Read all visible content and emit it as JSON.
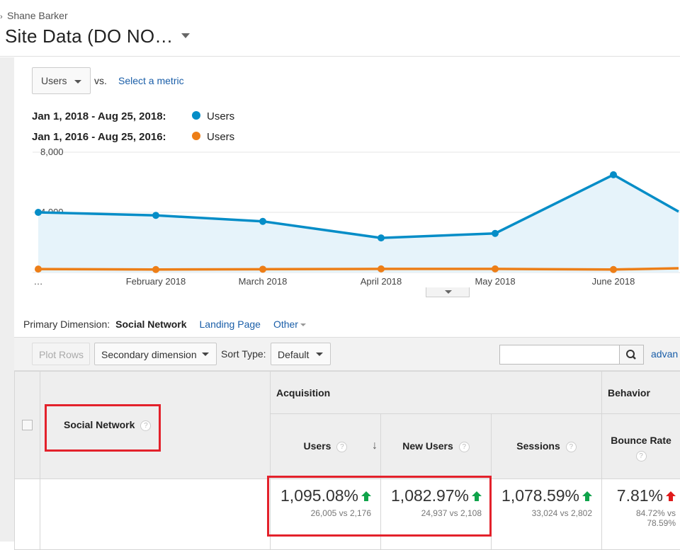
{
  "header": {
    "account": "Shane Barker",
    "view_name": "Site Data (DO NO…"
  },
  "controls": {
    "metric": "Users",
    "vs": "vs.",
    "select_metric": "Select a metric"
  },
  "legend": [
    {
      "range": "Jan 1, 2018 - Aug 25, 2018:",
      "metric": "Users",
      "color": "#058dc7"
    },
    {
      "range": "Jan 1, 2016 - Aug 25, 2016:",
      "metric": "Users",
      "color": "#ed7e17"
    }
  ],
  "chart_data": {
    "type": "line",
    "y_ticks": [
      "8,000",
      "4,000"
    ],
    "ylim": [
      0,
      8000
    ],
    "x_ticks": [
      "…",
      "February 2018",
      "March 2018",
      "April 2018",
      "May 2018",
      "June 2018"
    ],
    "grid": true,
    "series": [
      {
        "name": "Users",
        "period": "Jan 1, 2018 - Aug 25, 2018",
        "color": "#058dc7",
        "values": [
          4000,
          3800,
          3400,
          2300,
          2600,
          6500,
          4050
        ]
      },
      {
        "name": "Users",
        "period": "Jan 1, 2016 - Aug 25, 2016",
        "color": "#ed7e17",
        "values": [
          230,
          200,
          220,
          240,
          240,
          200,
          280
        ]
      }
    ]
  },
  "dimension_bar": {
    "label": "Primary Dimension:",
    "active": "Social Network",
    "landing_page": "Landing Page",
    "other": "Other"
  },
  "toolbar": {
    "plot_rows": "Plot Rows",
    "secondary_dimension": "Secondary dimension",
    "sort_type_label": "Sort Type:",
    "sort_type": "Default",
    "advanced": "advan"
  },
  "table": {
    "dimension_header": "Social Network",
    "group_acquisition": "Acquisition",
    "group_behavior": "Behavior",
    "columns": [
      "Users",
      "New Users",
      "Sessions",
      "Bounce Rate"
    ],
    "totals": [
      {
        "pct": "1,095.08%",
        "sub": "26,005 vs 2,176",
        "trend": "up"
      },
      {
        "pct": "1,082.97%",
        "sub": "24,937 vs 2,108",
        "trend": "up"
      },
      {
        "pct": "1,078.59%",
        "sub": "33,024 vs 2,802",
        "trend": "up"
      },
      {
        "pct": "7.81%",
        "sub": "84.72% vs 78.59%",
        "trend": "up-bad"
      }
    ]
  }
}
